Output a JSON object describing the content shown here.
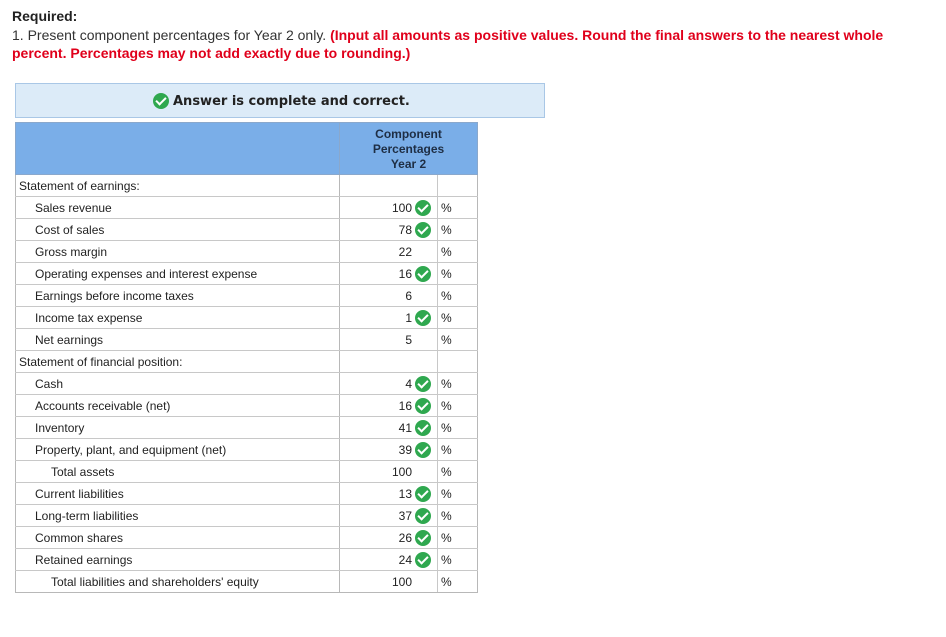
{
  "header": {
    "required_label": "Required:",
    "instruction_plain": "1. Present component percentages for Year 2 only. ",
    "instruction_red": "(Input all amounts as positive values. Round the final answers to the nearest whole percent. Percentages may not add exactly due to rounding.)"
  },
  "banner": {
    "text": "Answer is complete and correct."
  },
  "table": {
    "column_header": [
      "Component",
      "Percentages",
      "Year 2"
    ],
    "pct_symbol": "%",
    "rows": [
      {
        "label": "Statement of earnings:",
        "indent": 0,
        "value": "",
        "check": false,
        "pct": false
      },
      {
        "label": "Sales revenue",
        "indent": 1,
        "value": "100",
        "check": true,
        "pct": true
      },
      {
        "label": "Cost of sales",
        "indent": 1,
        "value": "78",
        "check": true,
        "pct": true
      },
      {
        "label": "Gross margin",
        "indent": 1,
        "value": "22",
        "check": false,
        "pct": true
      },
      {
        "label": "Operating expenses and interest expense",
        "indent": 1,
        "value": "16",
        "check": true,
        "pct": true
      },
      {
        "label": "Earnings before income taxes",
        "indent": 1,
        "value": "6",
        "check": false,
        "pct": true
      },
      {
        "label": "Income tax expense",
        "indent": 1,
        "value": "1",
        "check": true,
        "pct": true
      },
      {
        "label": "Net earnings",
        "indent": 1,
        "value": "5",
        "check": false,
        "pct": true,
        "total": true
      },
      {
        "label": "Statement of financial position:",
        "indent": 0,
        "value": "",
        "check": false,
        "pct": false
      },
      {
        "label": "Cash",
        "indent": 1,
        "value": "4",
        "check": true,
        "pct": true
      },
      {
        "label": "Accounts receivable (net)",
        "indent": 1,
        "value": "16",
        "check": true,
        "pct": true
      },
      {
        "label": "Inventory",
        "indent": 1,
        "value": "41",
        "check": true,
        "pct": true
      },
      {
        "label": "Property, plant, and equipment (net)",
        "indent": 1,
        "value": "39",
        "check": true,
        "pct": true
      },
      {
        "label": "Total assets",
        "indent": 2,
        "value": "100",
        "check": false,
        "pct": true,
        "total": true
      },
      {
        "label": "Current liabilities",
        "indent": 1,
        "value": "13",
        "check": true,
        "pct": true
      },
      {
        "label": "Long-term liabilities",
        "indent": 1,
        "value": "37",
        "check": true,
        "pct": true
      },
      {
        "label": "Common shares",
        "indent": 1,
        "value": "26",
        "check": true,
        "pct": true
      },
      {
        "label": "Retained earnings",
        "indent": 1,
        "value": "24",
        "check": true,
        "pct": true
      },
      {
        "label": "Total liabilities and shareholders' equity",
        "indent": 2,
        "value": "100",
        "check": false,
        "pct": true,
        "total": true
      }
    ]
  },
  "colors": {
    "check_green": "#2fa84f",
    "header_blue": "#7aaee8",
    "banner_blue": "#dcebf8",
    "instruction_red": "#e0001b"
  }
}
